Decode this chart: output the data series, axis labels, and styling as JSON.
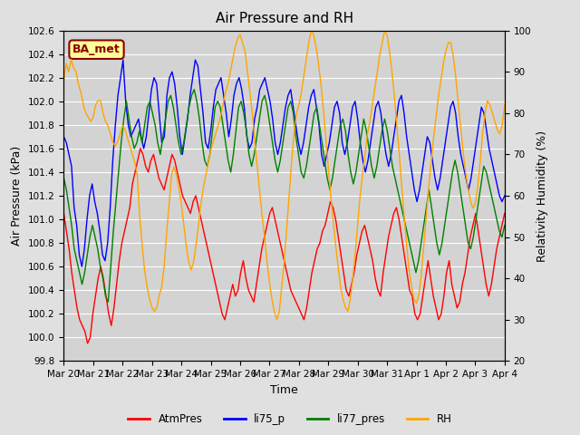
{
  "title": "Air Pressure and RH",
  "xlabel": "Time",
  "ylabel_left": "Air Pressure (kPa)",
  "ylabel_right": "Relativity Humidity (%)",
  "ylim_left": [
    99.8,
    102.6
  ],
  "ylim_right": [
    20,
    100
  ],
  "yticks_left": [
    99.8,
    100.0,
    100.2,
    100.4,
    100.6,
    100.8,
    101.0,
    101.2,
    101.4,
    101.6,
    101.8,
    102.0,
    102.2,
    102.4,
    102.6
  ],
  "yticks_right": [
    20,
    30,
    40,
    50,
    60,
    70,
    80,
    90,
    100
  ],
  "legend_labels": [
    "AtmPres",
    "li75_p",
    "li77_pres",
    "RH"
  ],
  "legend_colors": [
    "red",
    "blue",
    "green",
    "orange"
  ],
  "annotation_text": "BA_met",
  "annotation_color": "#8B0000",
  "annotation_bg": "#FFFF99",
  "fig_bg_color": "#E0E0E0",
  "plot_bg_color": "#D3D3D3",
  "grid_color": "white",
  "title_fontsize": 11,
  "label_fontsize": 9,
  "tick_fontsize": 7.5,
  "line_width": 1.0,
  "xtick_labels": [
    "Mar 20",
    "Mar 21",
    "Mar 22",
    "Mar 23",
    "Mar 24",
    "Mar 25",
    "Mar 26",
    "Mar 27",
    "Mar 28",
    "Mar 29",
    "Mar 30",
    "Mar 31",
    "Apr 1",
    "Apr 2",
    "Apr 3",
    "Apr 4"
  ],
  "atm_pres": [
    101.05,
    100.9,
    100.75,
    100.55,
    100.4,
    100.25,
    100.15,
    100.1,
    100.05,
    99.95,
    100.0,
    100.2,
    100.35,
    100.5,
    100.6,
    100.5,
    100.35,
    100.2,
    100.1,
    100.25,
    100.45,
    100.65,
    100.8,
    100.9,
    101.0,
    101.1,
    101.3,
    101.4,
    101.5,
    101.6,
    101.55,
    101.45,
    101.4,
    101.5,
    101.55,
    101.45,
    101.35,
    101.3,
    101.25,
    101.35,
    101.45,
    101.55,
    101.5,
    101.4,
    101.3,
    101.2,
    101.15,
    101.1,
    101.05,
    101.15,
    101.2,
    101.1,
    101.0,
    100.9,
    100.8,
    100.7,
    100.6,
    100.5,
    100.4,
    100.3,
    100.2,
    100.15,
    100.25,
    100.35,
    100.45,
    100.35,
    100.4,
    100.55,
    100.65,
    100.5,
    100.4,
    100.35,
    100.3,
    100.45,
    100.6,
    100.75,
    100.85,
    100.95,
    101.05,
    101.1,
    101.0,
    100.9,
    100.8,
    100.7,
    100.6,
    100.5,
    100.4,
    100.35,
    100.3,
    100.25,
    100.2,
    100.15,
    100.25,
    100.4,
    100.55,
    100.65,
    100.75,
    100.8,
    100.9,
    100.95,
    101.05,
    101.15,
    101.1,
    101.0,
    100.85,
    100.7,
    100.55,
    100.4,
    100.35,
    100.45,
    100.55,
    100.7,
    100.8,
    100.9,
    100.95,
    100.85,
    100.75,
    100.65,
    100.5,
    100.4,
    100.35,
    100.55,
    100.7,
    100.85,
    100.95,
    101.05,
    101.1,
    101.0,
    100.85,
    100.7,
    100.55,
    100.4,
    100.35,
    100.2,
    100.15,
    100.2,
    100.35,
    100.5,
    100.65,
    100.5,
    100.35,
    100.25,
    100.15,
    100.2,
    100.35,
    100.55,
    100.65,
    100.45,
    100.35,
    100.25,
    100.3,
    100.45,
    100.55,
    100.7,
    100.85,
    100.95,
    101.05,
    100.9,
    100.75,
    100.6,
    100.45,
    100.35,
    100.45,
    100.6,
    100.75,
    100.85,
    100.95,
    101.05
  ],
  "li75_p": [
    101.7,
    101.65,
    101.55,
    101.45,
    101.1,
    100.95,
    100.7,
    100.6,
    100.75,
    101.0,
    101.2,
    101.3,
    101.15,
    101.05,
    100.9,
    100.7,
    100.65,
    100.8,
    101.1,
    101.5,
    101.8,
    102.05,
    102.2,
    102.35,
    102.0,
    101.8,
    101.7,
    101.75,
    101.8,
    101.85,
    101.7,
    101.6,
    101.7,
    101.9,
    102.1,
    102.2,
    102.15,
    101.9,
    101.65,
    101.7,
    102.05,
    102.2,
    102.25,
    102.15,
    101.95,
    101.7,
    101.55,
    101.7,
    101.85,
    102.05,
    102.2,
    102.35,
    102.3,
    102.1,
    101.9,
    101.65,
    101.6,
    101.75,
    101.95,
    102.1,
    102.15,
    102.2,
    102.05,
    101.9,
    101.7,
    101.85,
    102.05,
    102.15,
    102.2,
    102.1,
    101.95,
    101.7,
    101.6,
    101.65,
    101.85,
    101.95,
    102.1,
    102.15,
    102.2,
    102.1,
    102.0,
    101.85,
    101.65,
    101.55,
    101.65,
    101.8,
    101.95,
    102.05,
    102.1,
    101.95,
    101.8,
    101.65,
    101.55,
    101.65,
    101.8,
    101.95,
    102.05,
    102.1,
    101.95,
    101.8,
    101.55,
    101.45,
    101.55,
    101.65,
    101.8,
    101.95,
    102.0,
    101.9,
    101.65,
    101.55,
    101.65,
    101.8,
    101.95,
    102.0,
    101.85,
    101.65,
    101.5,
    101.4,
    101.5,
    101.65,
    101.8,
    101.95,
    102.0,
    101.9,
    101.7,
    101.55,
    101.45,
    101.55,
    101.7,
    101.85,
    102.0,
    102.05,
    101.9,
    101.7,
    101.55,
    101.4,
    101.25,
    101.15,
    101.25,
    101.4,
    101.55,
    101.7,
    101.65,
    101.5,
    101.35,
    101.25,
    101.35,
    101.5,
    101.65,
    101.8,
    101.95,
    102.0,
    101.9,
    101.7,
    101.55,
    101.45,
    101.35,
    101.25,
    101.35,
    101.5,
    101.65,
    101.8,
    101.95,
    101.9,
    101.75,
    101.6,
    101.5,
    101.4,
    101.3,
    101.2,
    101.15,
    101.2
  ],
  "li77_pres": [
    101.35,
    101.25,
    101.1,
    100.95,
    100.75,
    100.65,
    100.55,
    100.45,
    100.55,
    100.7,
    100.85,
    100.95,
    100.85,
    100.75,
    100.6,
    100.5,
    100.35,
    100.3,
    100.6,
    100.9,
    101.15,
    101.4,
    101.65,
    101.85,
    102.0,
    101.85,
    101.7,
    101.6,
    101.65,
    101.75,
    101.65,
    101.8,
    101.95,
    102.0,
    101.9,
    101.8,
    101.65,
    101.55,
    101.7,
    101.85,
    102.0,
    102.05,
    101.95,
    101.8,
    101.65,
    101.55,
    101.65,
    101.8,
    101.95,
    102.05,
    102.1,
    102.0,
    101.85,
    101.65,
    101.5,
    101.45,
    101.55,
    101.75,
    101.95,
    102.0,
    101.95,
    101.8,
    101.65,
    101.5,
    101.4,
    101.55,
    101.75,
    101.95,
    102.0,
    101.9,
    101.75,
    101.55,
    101.45,
    101.55,
    101.7,
    101.85,
    102.0,
    102.05,
    101.95,
    101.8,
    101.65,
    101.5,
    101.4,
    101.5,
    101.65,
    101.8,
    101.95,
    102.0,
    101.9,
    101.7,
    101.55,
    101.4,
    101.35,
    101.45,
    101.6,
    101.75,
    101.9,
    101.95,
    101.8,
    101.65,
    101.5,
    101.35,
    101.25,
    101.35,
    101.5,
    101.65,
    101.8,
    101.85,
    101.75,
    101.55,
    101.4,
    101.3,
    101.4,
    101.55,
    101.7,
    101.85,
    101.75,
    101.6,
    101.45,
    101.35,
    101.45,
    101.6,
    101.75,
    101.85,
    101.75,
    101.6,
    101.45,
    101.35,
    101.25,
    101.15,
    101.05,
    100.95,
    100.85,
    100.75,
    100.65,
    100.55,
    100.65,
    100.8,
    100.95,
    101.1,
    101.25,
    101.1,
    100.95,
    100.8,
    100.7,
    100.8,
    100.95,
    101.1,
    101.25,
    101.4,
    101.5,
    101.4,
    101.25,
    101.1,
    100.95,
    100.8,
    100.75,
    100.85,
    101.0,
    101.15,
    101.3,
    101.45,
    101.4,
    101.3,
    101.2,
    101.1,
    101.0,
    100.9,
    100.85,
    100.95
  ],
  "rh": [
    88,
    92,
    90,
    93,
    91,
    90,
    87,
    85,
    82,
    80,
    79,
    78,
    79,
    82,
    83,
    83,
    80,
    78,
    77,
    75,
    73,
    72,
    73,
    75,
    77,
    76,
    74,
    72,
    70,
    68,
    65,
    55,
    48,
    42,
    38,
    35,
    33,
    32,
    33,
    36,
    38,
    43,
    51,
    58,
    65,
    67,
    65,
    62,
    58,
    53,
    48,
    44,
    42,
    44,
    48,
    53,
    58,
    62,
    65,
    68,
    71,
    73,
    75,
    77,
    79,
    82,
    85,
    87,
    90,
    93,
    96,
    98,
    99,
    97,
    95,
    90,
    85,
    80,
    73,
    67,
    61,
    55,
    50,
    44,
    39,
    35,
    32,
    30,
    32,
    38,
    44,
    52,
    60,
    68,
    75,
    80,
    82,
    85,
    89,
    93,
    97,
    100,
    99,
    96,
    92,
    87,
    81,
    74,
    67,
    60,
    54,
    48,
    43,
    38,
    35,
    33,
    32,
    35,
    40,
    46,
    53,
    60,
    65,
    70,
    75,
    78,
    82,
    86,
    90,
    94,
    97,
    100,
    99,
    95,
    90,
    84,
    77,
    70,
    62,
    55,
    48,
    42,
    38,
    35,
    34,
    36,
    41,
    48,
    55,
    62,
    68,
    74,
    79,
    84,
    88,
    92,
    95,
    97,
    97,
    94,
    89,
    83,
    77,
    71,
    66,
    62,
    59,
    57,
    58,
    62,
    68,
    75,
    80,
    83,
    82,
    80,
    78,
    76,
    75,
    77,
    82
  ]
}
